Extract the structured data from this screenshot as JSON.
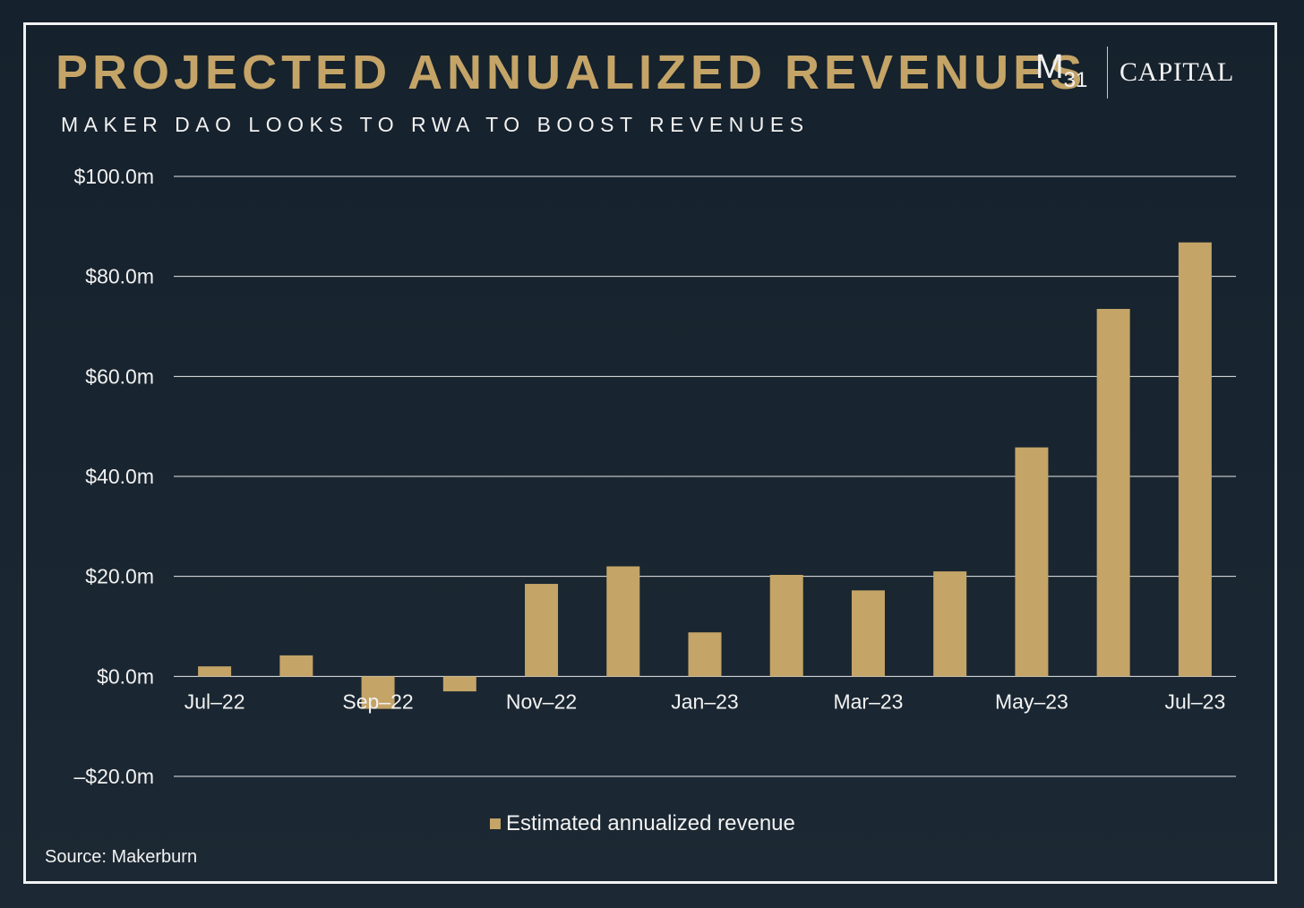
{
  "title": "PROJECTED ANNUALIZED REVENUES",
  "subtitle": "MAKER DAO LOOKS TO RWA TO BOOST REVENUES",
  "logo": {
    "mark": "M",
    "mark_sub": "31",
    "name": "CAPITAL"
  },
  "source": "Source: Makerburn",
  "colors": {
    "bar": "#c4a467",
    "gridline": "#e8e8e8",
    "text": "#f2f2f2",
    "title": "#c4a467",
    "background": "#1a2630"
  },
  "chart_data": {
    "type": "bar",
    "title": "PROJECTED ANNUALIZED REVENUES",
    "subtitle": "MAKER DAO LOOKS TO RWA TO BOOST REVENUES",
    "xlabel": "",
    "ylabel": "",
    "categories": [
      "Jul-22",
      "Aug-22",
      "Sep-22",
      "Oct-22",
      "Nov-22",
      "Dec-22",
      "Jan-23",
      "Feb-23",
      "Mar-23",
      "Apr-23",
      "May-23",
      "Jun-23",
      "Jul-23"
    ],
    "x_tick_labels": [
      "Jul–22",
      "Sep–22",
      "Nov–22",
      "Jan–23",
      "Mar–23",
      "May–23",
      "Jul–23"
    ],
    "x_tick_label_indices": [
      0,
      2,
      4,
      6,
      8,
      10,
      12
    ],
    "y_ticks": [
      -20,
      0,
      20,
      40,
      60,
      80,
      100
    ],
    "y_tick_labels": [
      "–$20.0m",
      "$0.0m",
      "$20.0m",
      "$40.0m",
      "$60.0m",
      "$80.0m",
      "$100.0m"
    ],
    "ylim": [
      -20,
      100
    ],
    "grid": true,
    "legend_position": "bottom-center",
    "series": [
      {
        "name": "Estimated annualized revenue",
        "color": "#c4a467",
        "values": [
          2.0,
          4.2,
          -6.5,
          -3.0,
          18.5,
          22.0,
          8.8,
          20.3,
          17.2,
          21.0,
          45.8,
          73.5,
          86.8
        ]
      }
    ]
  }
}
